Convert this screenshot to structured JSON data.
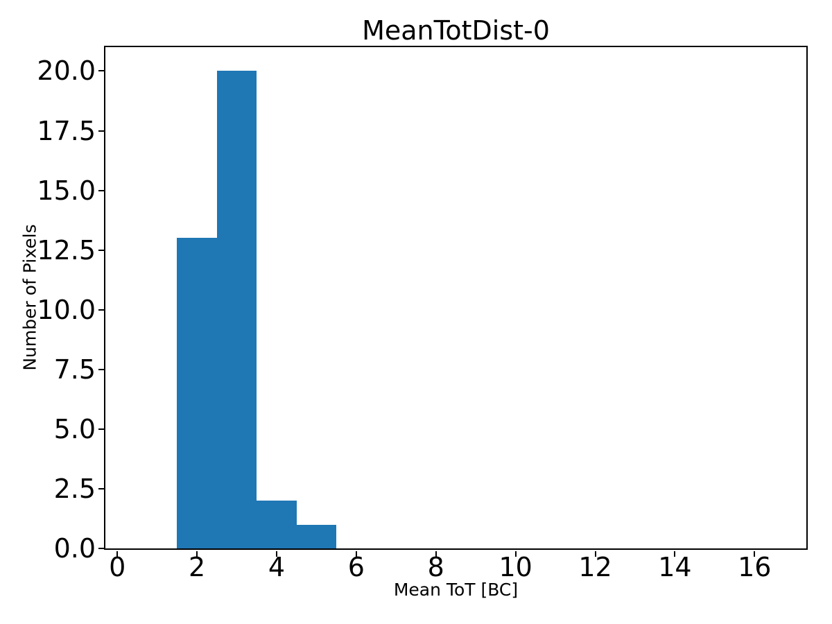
{
  "chart_data": {
    "type": "bar",
    "subtype": "histogram",
    "title": "MeanTotDist-0",
    "xlabel": "Mean ToT [BC]",
    "ylabel": "Number of Pixels",
    "bar_color": "#1f77b4",
    "background_color": "#ffffff",
    "axis_color": "#000000",
    "grid": false,
    "legend": null,
    "xlim": [
      -0.3,
      17.3
    ],
    "ylim": [
      0,
      21
    ],
    "xticks": [
      0,
      2,
      4,
      6,
      8,
      10,
      12,
      14,
      16
    ],
    "xtick_labels": [
      "0",
      "2",
      "4",
      "6",
      "8",
      "10",
      "12",
      "14",
      "16"
    ],
    "yticks": [
      0,
      2.5,
      5,
      7.5,
      10,
      12.5,
      15,
      17.5,
      20
    ],
    "ytick_labels": [
      "0.0",
      "2.5",
      "5.0",
      "7.5",
      "10.0",
      "12.5",
      "15.0",
      "17.5",
      "20.0"
    ],
    "bins": {
      "edges": [
        1.5,
        2.5,
        3.5,
        4.5,
        5.5
      ],
      "counts": [
        13,
        20,
        2,
        1
      ]
    }
  }
}
